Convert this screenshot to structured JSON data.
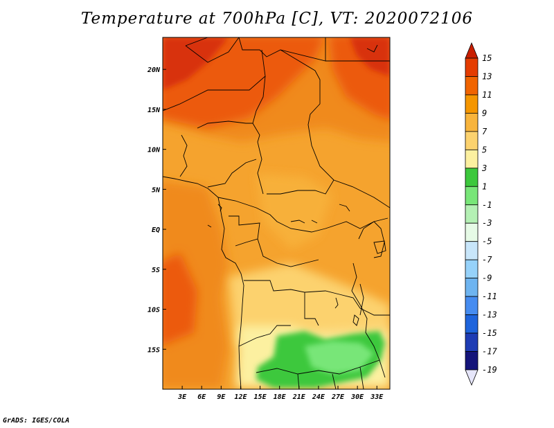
{
  "title": "Temperature at 700hPa [C], VT: 2020072106",
  "credit": "GrADS: IGES/COLA",
  "map": {
    "lon_range": [
      0,
      35
    ],
    "lat_range": [
      -20,
      24
    ],
    "lon_ticks": [
      {
        "value": 3,
        "label": "3E"
      },
      {
        "value": 6,
        "label": "6E"
      },
      {
        "value": 9,
        "label": "9E"
      },
      {
        "value": 12,
        "label": "12E"
      },
      {
        "value": 15,
        "label": "15E"
      },
      {
        "value": 18,
        "label": "18E"
      },
      {
        "value": 21,
        "label": "21E"
      },
      {
        "value": 24,
        "label": "24E"
      },
      {
        "value": 27,
        "label": "27E"
      },
      {
        "value": 30,
        "label": "30E"
      },
      {
        "value": 33,
        "label": "33E"
      }
    ],
    "lat_ticks": [
      {
        "value": 20,
        "label": "20N"
      },
      {
        "value": 15,
        "label": "15N"
      },
      {
        "value": 10,
        "label": "10N"
      },
      {
        "value": 5,
        "label": "5N"
      },
      {
        "value": 0,
        "label": "EQ"
      },
      {
        "value": -5,
        "label": "5S"
      },
      {
        "value": -10,
        "label": "10S"
      },
      {
        "value": -15,
        "label": "15S"
      }
    ]
  },
  "colorbar": {
    "labels": [
      "15",
      "13",
      "11",
      "9",
      "7",
      "5",
      "3",
      "1",
      "-1",
      "-3",
      "-5",
      "-7",
      "-9",
      "-11",
      "-13",
      "-15",
      "-17",
      "-19"
    ],
    "colors": [
      "#c81e00",
      "#e43c00",
      "#f06400",
      "#f59600",
      "#f8b43c",
      "#fcd26e",
      "#fcf0a0",
      "#3cc83c",
      "#78e678",
      "#b4f0b4",
      "#e6fae6",
      "#c8e6fa",
      "#96d2fa",
      "#6eb4f0",
      "#468cf0",
      "#1e64dc",
      "#1e3cb4",
      "#14147a",
      "#e6e6fa"
    ]
  }
}
